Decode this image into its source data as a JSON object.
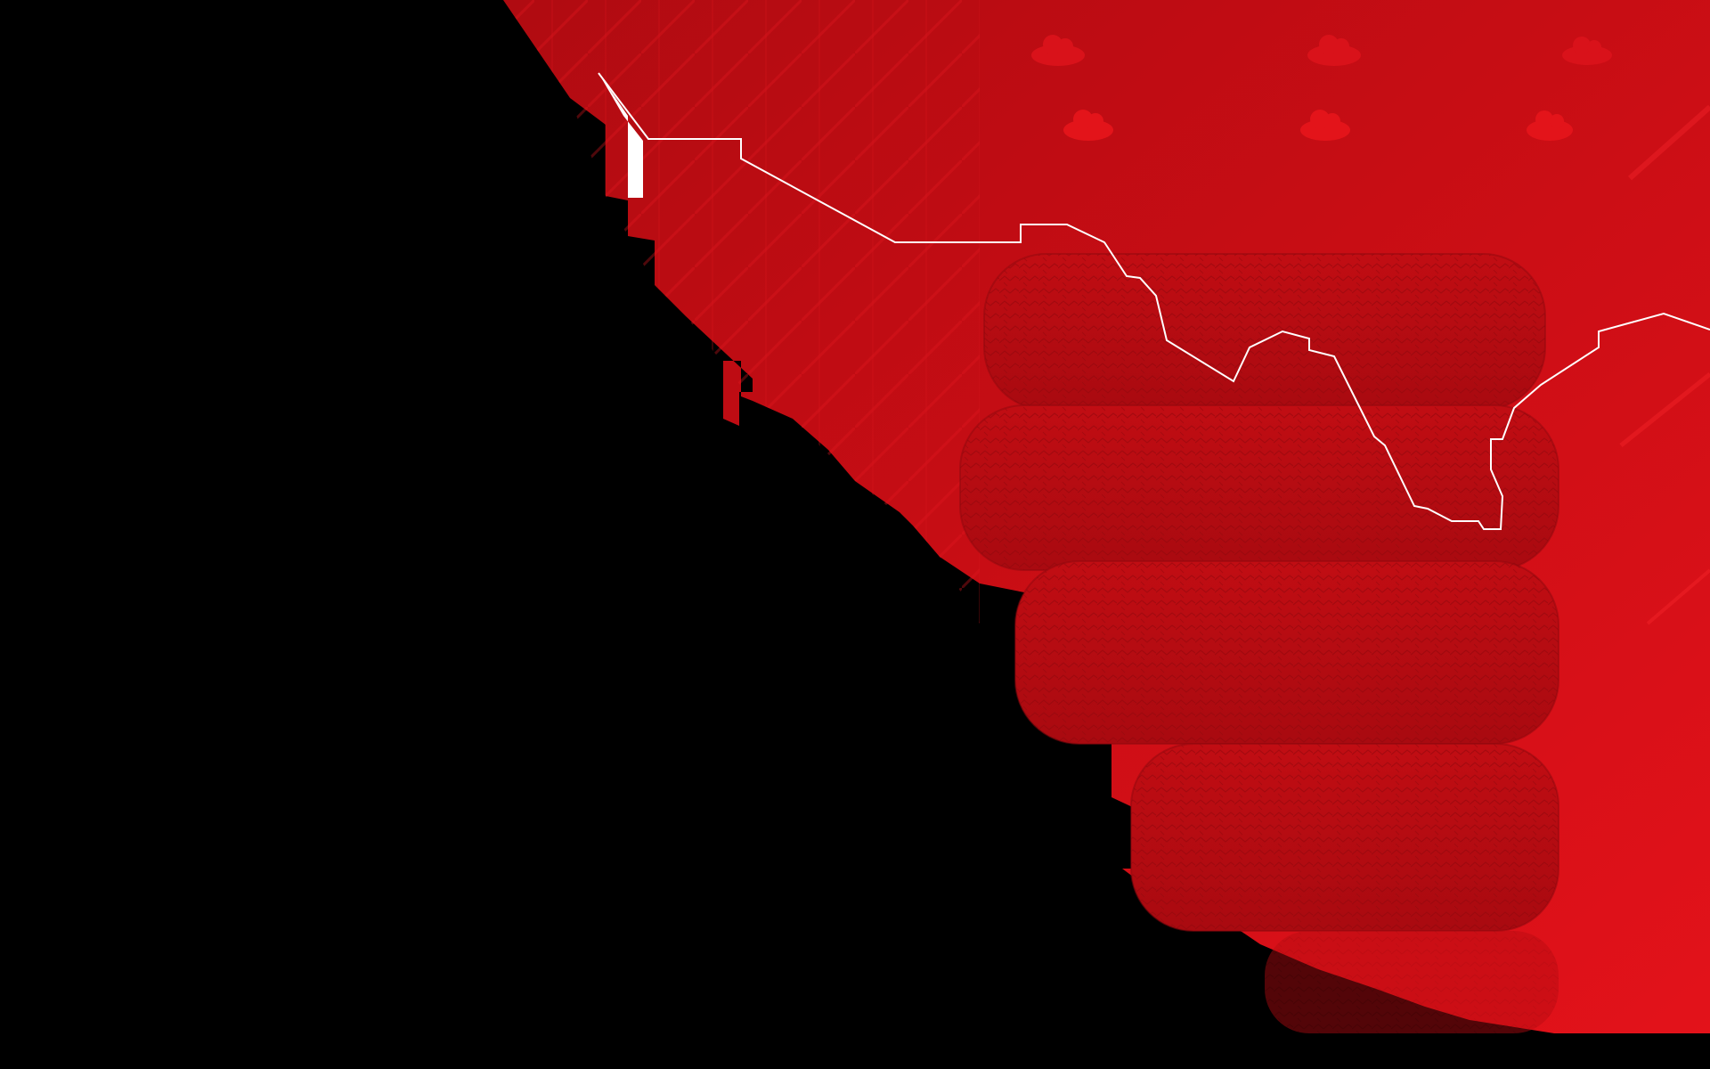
{
  "colors": {
    "background": "#000000",
    "map_red": "#c40d14",
    "map_red_light": "#e8141b",
    "map_red_dark": "#9a0a10",
    "border_line": "#ffffff",
    "cloud": "#e3141a",
    "tire": "#b80c12"
  },
  "icons": {
    "cloud": "cloud-icon",
    "tire": "tire-stack-icon"
  }
}
